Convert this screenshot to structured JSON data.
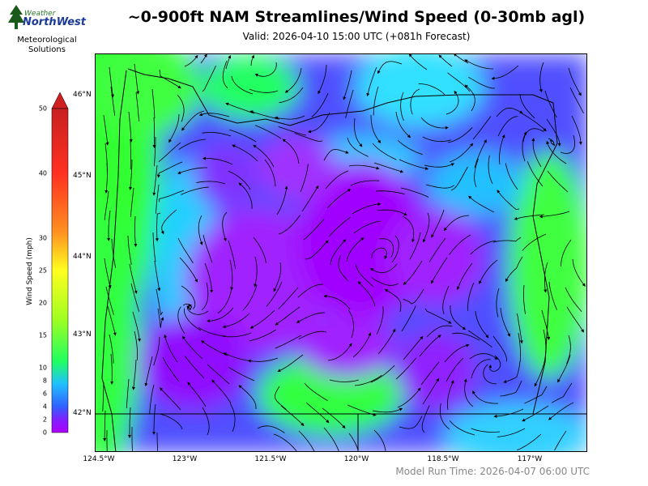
{
  "header": {
    "title": "~0-900ft NAM Streamlines/Wind Speed (0-30mb agl)",
    "valid": "Valid: 2026-04-10 15:00 UTC  (+081h Forecast)"
  },
  "logo": {
    "line1": "Weather",
    "line2": "NorthWest",
    "sub1": "Meteorological",
    "sub2": "Solutions"
  },
  "map": {
    "lat_labels": [
      "46°N",
      "45°N",
      "44°N",
      "43°N",
      "42°N"
    ],
    "lon_labels": [
      "124.5°W",
      "123°W",
      "121.5°W",
      "120°W",
      "118.5°W",
      "117°W"
    ]
  },
  "colorbar": {
    "label": "Wind Speed (mph)",
    "ticks": [
      "0",
      "2",
      "4",
      "6",
      "8",
      "10",
      "15",
      "20",
      "25",
      "30",
      "40",
      "50"
    ],
    "colors": {
      "0": "#b000ff",
      "4": "#3060ff",
      "8": "#20c0ff",
      "12": "#20ff40",
      "22": "#ffff20",
      "30": "#ff8020",
      "50": "#d02020"
    }
  },
  "footer": {
    "run_time": "Model Run Time: 2026-04-07 06:00 UTC"
  }
}
